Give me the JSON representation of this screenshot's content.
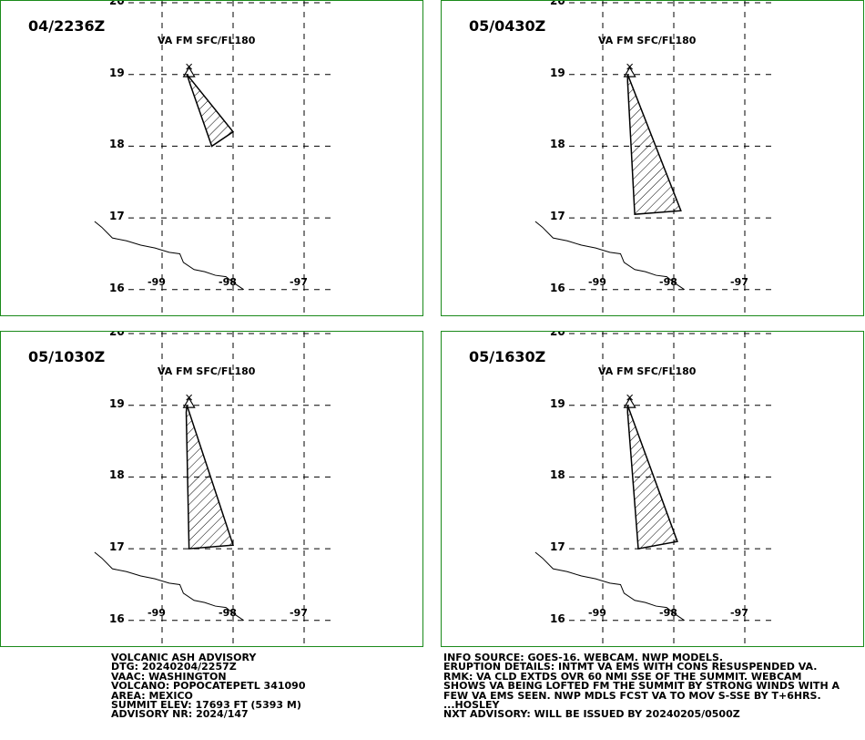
{
  "panels": [
    {
      "time": "04/2236Z",
      "label": "VA FM SFC/FL180",
      "polygon": [
        [
          -98.65,
          19.0
        ],
        [
          -98.0,
          18.2
        ],
        [
          -98.3,
          18.0
        ],
        [
          -98.6,
          18.85
        ]
      ]
    },
    {
      "time": "05/0430Z",
      "label": "VA FM SFC/FL180",
      "polygon": [
        [
          -98.65,
          19.0
        ],
        [
          -97.9,
          17.1
        ],
        [
          -98.55,
          17.05
        ],
        [
          -98.65,
          18.9
        ]
      ]
    },
    {
      "time": "05/1030Z",
      "label": "VA FM SFC/FL180",
      "polygon": [
        [
          -98.65,
          19.0
        ],
        [
          -98.0,
          17.05
        ],
        [
          -98.62,
          17.0
        ],
        [
          -98.66,
          18.9
        ]
      ]
    },
    {
      "time": "05/1630Z",
      "label": "VA FM SFC/FL180",
      "polygon": [
        [
          -98.65,
          19.0
        ],
        [
          -97.95,
          17.1
        ],
        [
          -98.5,
          17.0
        ],
        [
          -98.65,
          18.9
        ]
      ]
    }
  ],
  "axes": {
    "lat_ticks": [
      "20",
      "19",
      "18",
      "17",
      "16"
    ],
    "lon_ticks": [
      "-99",
      "-98",
      "-97"
    ]
  },
  "volcano": {
    "name_symbol": "volcano-triangle",
    "lon": -98.62,
    "lat": 19.02
  },
  "advisory_left": [
    "VOLCANIC ASH ADVISORY",
    "DTG: 20240204/2257Z",
    "VAAC: WASHINGTON",
    "VOLCANO: POPOCATEPETL 341090",
    "AREA: MEXICO",
    "SUMMIT ELEV: 17693 FT (5393 M)",
    "ADVISORY NR: 2024/147"
  ],
  "advisory_right": [
    "INFO SOURCE: GOES-16. WEBCAM. NWP MODELS.",
    "ERUPTION DETAILS: INTMT VA EMS WITH CONS RESUSPENDED VA.",
    "RMK: VA CLD EXTDS OVR 60 NMI SSE OF THE SUMMIT. WEBCAM",
    "SHOWS VA BEING LOFTED FM THE SUMMIT BY STRONG WINDS WITH A",
    "FEW VA EMS SEEN. NWP MDLS FCST VA TO MOV S-SSE BY T+6HRS.",
    "...HOSLEY",
    "NXT ADVISORY: WILL BE ISSUED BY 20240205/0500Z"
  ],
  "colors": {
    "border": "#1a8a1a",
    "grid": "#000000",
    "hatch": "#000000"
  }
}
